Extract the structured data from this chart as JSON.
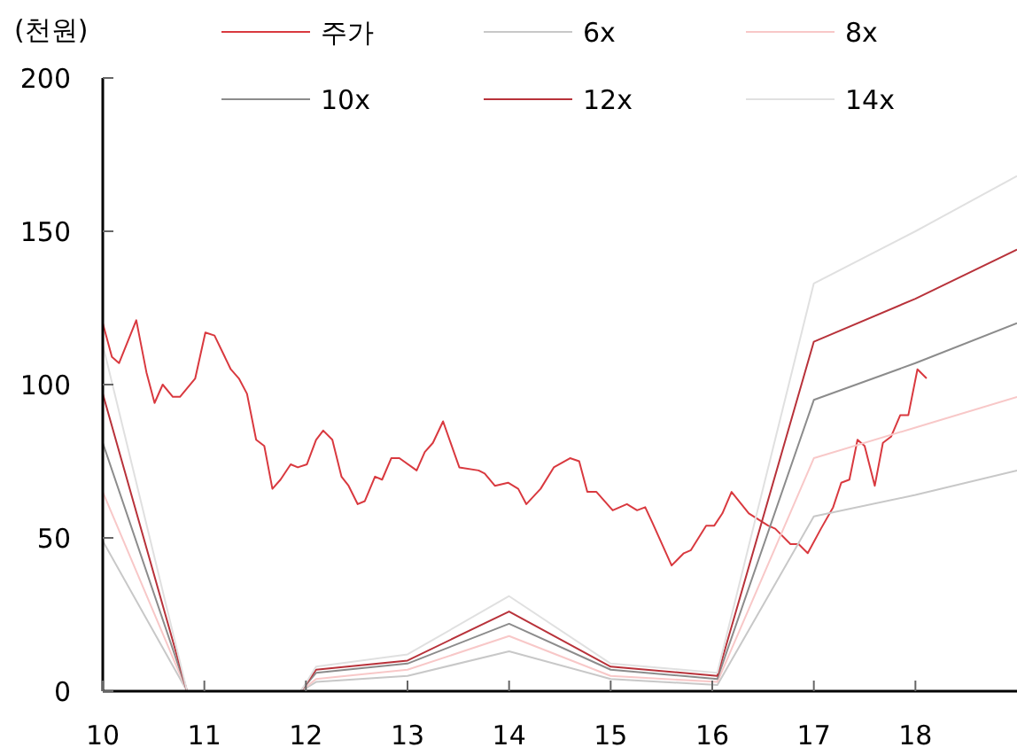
{
  "chart_data": {
    "type": "line",
    "ylabel": "(천원)",
    "xlim": [
      10,
      19
    ],
    "ylim": [
      0,
      200
    ],
    "xticks": [
      10,
      11,
      12,
      13,
      14,
      15,
      16,
      17,
      18
    ],
    "yticks": [
      0,
      50,
      100,
      150,
      200
    ],
    "grid": false,
    "legend": "top",
    "line_style": "solid",
    "series": [
      {
        "name": "주가",
        "color": "#d9393f",
        "x": [
          10,
          10.09,
          10.16,
          10.33,
          10.43,
          10.51,
          10.59,
          10.69,
          10.76,
          10.91,
          11.01,
          11.1,
          11.26,
          11.34,
          11.42,
          11.51,
          11.59,
          11.67,
          11.75,
          11.85,
          11.92,
          12.01,
          12.1,
          12.17,
          12.26,
          12.35,
          12.42,
          12.51,
          12.58,
          12.68,
          12.75,
          12.84,
          12.92,
          13.09,
          13.17,
          13.25,
          13.35,
          13.51,
          13.7,
          13.76,
          13.86,
          13.99,
          14.09,
          14.17,
          14.31,
          14.44,
          14.6,
          14.69,
          14.77,
          14.86,
          15.02,
          15.16,
          15.26,
          15.34,
          15.41,
          15.6,
          15.72,
          15.79,
          15.94,
          16.02,
          16.1,
          16.19,
          16.36,
          16.55,
          16.62,
          16.77,
          16.85,
          16.94,
          17.07,
          17.19,
          17.27,
          17.35,
          17.43,
          17.5,
          17.6,
          17.68,
          17.76,
          17.85,
          17.93,
          18.02,
          18.11
        ],
        "values": [
          120,
          109,
          107,
          121,
          104,
          94,
          100,
          96,
          96,
          102,
          117,
          116,
          105,
          102,
          97,
          82,
          80,
          66,
          69,
          74,
          73,
          74,
          82,
          85,
          82,
          70,
          67,
          61,
          62,
          70,
          69,
          76,
          76,
          72,
          78,
          81,
          88,
          73,
          72,
          71,
          67,
          68,
          66,
          61,
          66,
          73,
          76,
          75,
          65,
          65,
          59,
          61,
          59,
          60,
          55,
          41,
          45,
          46,
          54,
          54,
          58,
          65,
          58,
          54,
          53,
          48,
          48,
          45,
          53,
          60,
          68,
          69,
          82,
          80,
          67,
          81,
          83,
          90,
          90,
          105,
          102
        ]
      },
      {
        "name": "6x",
        "color": "#c8c8c8",
        "x": [
          10,
          10.83,
          11.4,
          11.95,
          12.1,
          13,
          14,
          15,
          16.05,
          17,
          18,
          19
        ],
        "values": [
          49,
          0,
          null,
          0,
          3,
          5,
          13,
          4,
          2,
          57,
          64,
          72
        ]
      },
      {
        "name": "8x",
        "color": "#f8c8c8",
        "x": [
          10,
          10.83,
          11.4,
          11.95,
          12.1,
          13,
          14,
          15,
          16.05,
          17,
          18,
          19
        ],
        "values": [
          65,
          0,
          null,
          0,
          4,
          7,
          18,
          5,
          3,
          76,
          86,
          96
        ]
      },
      {
        "name": "10x",
        "color": "#8c8c8c",
        "x": [
          10,
          10.83,
          11.4,
          11.95,
          12.1,
          13,
          14,
          15,
          16.05,
          17,
          18,
          19
        ],
        "values": [
          81,
          0,
          null,
          0,
          6,
          9,
          22,
          7,
          4,
          95,
          107,
          120
        ]
      },
      {
        "name": "12x",
        "color": "#b8323a",
        "x": [
          10,
          10.83,
          11.4,
          11.95,
          12.1,
          13,
          14,
          15,
          16.05,
          17,
          18,
          19
        ],
        "values": [
          97,
          0,
          null,
          0,
          7,
          10,
          26,
          8,
          5,
          114,
          128,
          144
        ]
      },
      {
        "name": "14x",
        "color": "#e0e0e0",
        "x": [
          10,
          10.83,
          11.4,
          11.95,
          12.1,
          13,
          14,
          15,
          16.05,
          17,
          18,
          19
        ],
        "values": [
          113,
          0,
          null,
          0,
          8,
          12,
          31,
          9,
          6,
          133,
          150,
          168
        ]
      }
    ]
  }
}
